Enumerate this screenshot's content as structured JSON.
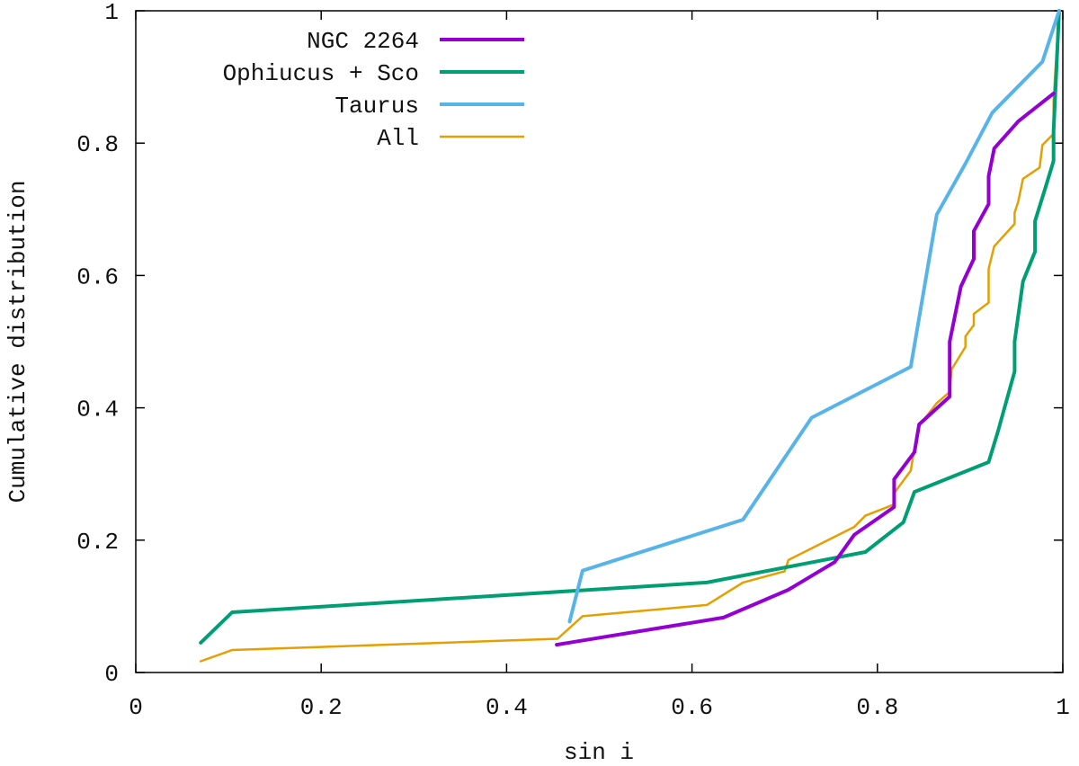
{
  "chart_data": {
    "type": "line",
    "title": "",
    "xlabel": "sin i",
    "ylabel": "Cumulative distribution",
    "xlim": [
      0,
      1
    ],
    "ylim": [
      0,
      1
    ],
    "x_ticks": [
      {
        "value": 0,
        "label": "0"
      },
      {
        "value": 0.2,
        "label": "0.2"
      },
      {
        "value": 0.4,
        "label": "0.4"
      },
      {
        "value": 0.6,
        "label": "0.6"
      },
      {
        "value": 0.8,
        "label": "0.8"
      },
      {
        "value": 1,
        "label": "1"
      }
    ],
    "y_ticks": [
      {
        "value": 0,
        "label": "0"
      },
      {
        "value": 0.2,
        "label": "0.2"
      },
      {
        "value": 0.4,
        "label": "0.4"
      },
      {
        "value": 0.6,
        "label": "0.6"
      },
      {
        "value": 0.8,
        "label": "0.8"
      },
      {
        "value": 1,
        "label": "1"
      }
    ],
    "grid": false,
    "legend_position": "top-left",
    "series": [
      {
        "name": "NGC 2264",
        "color": "#9400D3",
        "width": "thick",
        "points": [
          [
            0.454,
            0.042
          ],
          [
            0.634,
            0.083
          ],
          [
            0.704,
            0.125
          ],
          [
            0.754,
            0.167
          ],
          [
            0.775,
            0.208
          ],
          [
            0.818,
            0.25
          ],
          [
            0.818,
            0.292
          ],
          [
            0.84,
            0.333
          ],
          [
            0.845,
            0.375
          ],
          [
            0.878,
            0.417
          ],
          [
            0.878,
            0.458
          ],
          [
            0.878,
            0.5
          ],
          [
            0.89,
            0.583
          ],
          [
            0.904,
            0.625
          ],
          [
            0.904,
            0.667
          ],
          [
            0.92,
            0.708
          ],
          [
            0.92,
            0.75
          ],
          [
            0.926,
            0.792
          ],
          [
            0.952,
            0.833
          ],
          [
            0.99,
            0.875
          ]
        ]
      },
      {
        "name": "Ophiucus + Sco",
        "color": "#009E73",
        "width": "thick",
        "points": [
          [
            0.07,
            0.045
          ],
          [
            0.104,
            0.091
          ],
          [
            0.616,
            0.136
          ],
          [
            0.787,
            0.182
          ],
          [
            0.828,
            0.227
          ],
          [
            0.84,
            0.273
          ],
          [
            0.92,
            0.318
          ],
          [
            0.93,
            0.364
          ],
          [
            0.948,
            0.455
          ],
          [
            0.948,
            0.5
          ],
          [
            0.957,
            0.591
          ],
          [
            0.97,
            0.636
          ],
          [
            0.97,
            0.682
          ],
          [
            0.98,
            0.727
          ],
          [
            0.99,
            0.773
          ],
          [
            0.99,
            0.818
          ],
          [
            0.996,
            1.0
          ]
        ]
      },
      {
        "name": "Taurus",
        "color": "#56B4E9",
        "width": "thick",
        "points": [
          [
            0.468,
            0.077
          ],
          [
            0.482,
            0.154
          ],
          [
            0.655,
            0.231
          ],
          [
            0.729,
            0.385
          ],
          [
            0.836,
            0.462
          ],
          [
            0.864,
            0.692
          ],
          [
            0.895,
            0.769
          ],
          [
            0.924,
            0.846
          ],
          [
            0.978,
            0.923
          ],
          [
            0.996,
            1.0
          ]
        ]
      },
      {
        "name": "All",
        "color": "#E69F00",
        "width": "thin",
        "points": [
          [
            0.07,
            0.017
          ],
          [
            0.104,
            0.034
          ],
          [
            0.455,
            0.051
          ],
          [
            0.482,
            0.085
          ],
          [
            0.616,
            0.102
          ],
          [
            0.655,
            0.136
          ],
          [
            0.7,
            0.153
          ],
          [
            0.704,
            0.17
          ],
          [
            0.775,
            0.22
          ],
          [
            0.787,
            0.237
          ],
          [
            0.818,
            0.254
          ],
          [
            0.818,
            0.271
          ],
          [
            0.836,
            0.305
          ],
          [
            0.84,
            0.339
          ],
          [
            0.845,
            0.373
          ],
          [
            0.864,
            0.407
          ],
          [
            0.878,
            0.424
          ],
          [
            0.88,
            0.458
          ],
          [
            0.895,
            0.492
          ],
          [
            0.895,
            0.508
          ],
          [
            0.904,
            0.525
          ],
          [
            0.904,
            0.542
          ],
          [
            0.92,
            0.559
          ],
          [
            0.92,
            0.61
          ],
          [
            0.926,
            0.644
          ],
          [
            0.948,
            0.678
          ],
          [
            0.948,
            0.695
          ],
          [
            0.952,
            0.712
          ],
          [
            0.957,
            0.746
          ],
          [
            0.975,
            0.763
          ],
          [
            0.978,
            0.797
          ],
          [
            0.99,
            0.814
          ],
          [
            0.99,
            0.864
          ],
          [
            0.996,
            1.0
          ]
        ]
      }
    ]
  }
}
